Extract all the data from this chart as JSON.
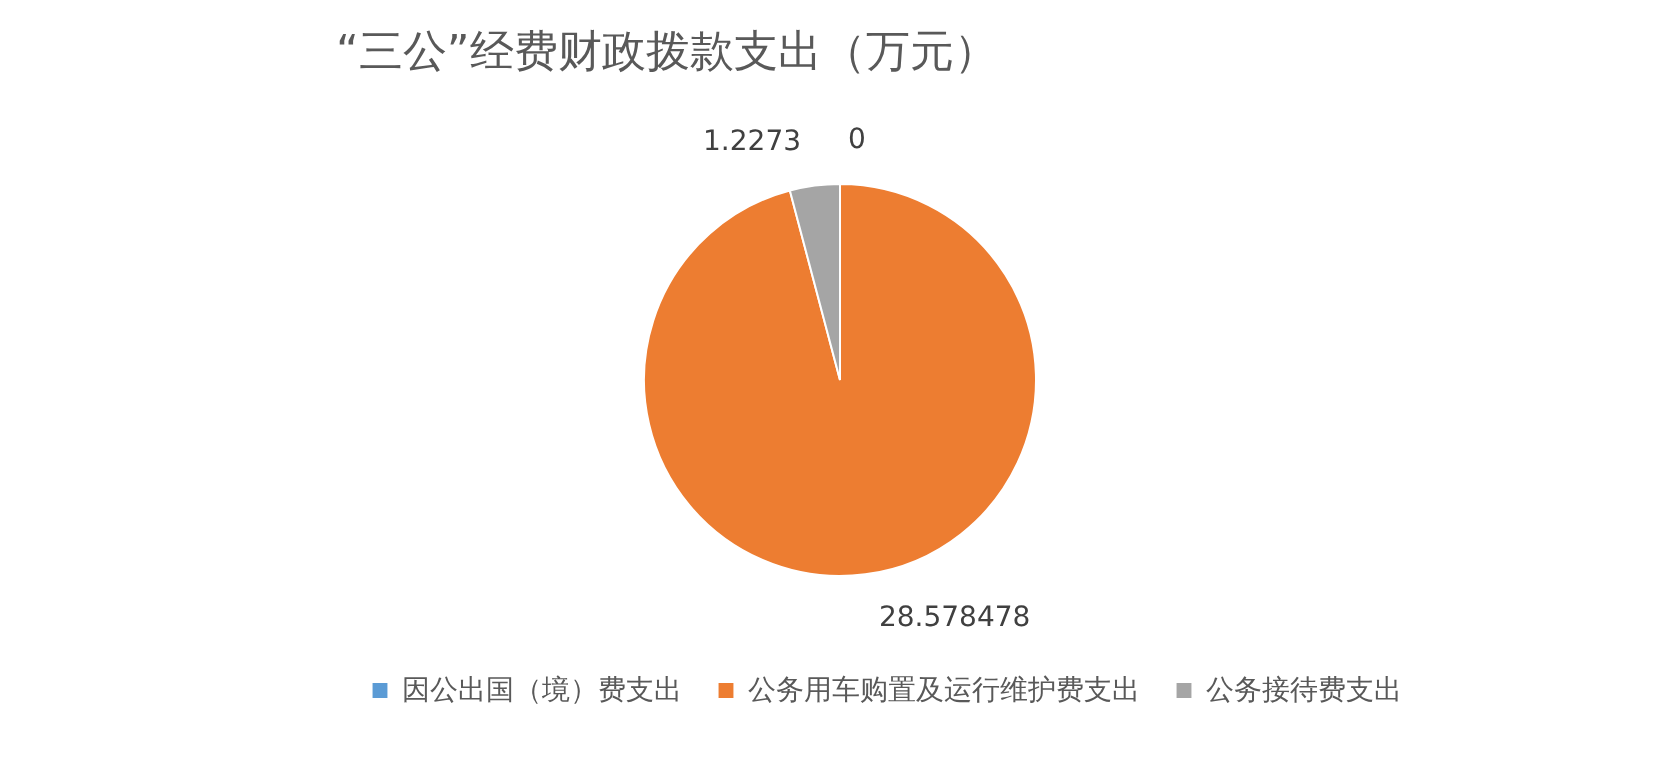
{
  "chart_data": {
    "type": "pie",
    "title": "“三公”经费财政拨款支出（万元）",
    "categories": [
      "因公出国（境）费支出",
      "公务用车购置及运行维护费支出",
      "公务接待费支出"
    ],
    "values": [
      0,
      28.578478,
      1.2273
    ],
    "colors": [
      "#5b9bd5",
      "#ed7d31",
      "#a5a5a5"
    ],
    "value_labels": [
      "0",
      "28.578478",
      "1.2273"
    ],
    "legend": "bottom"
  }
}
